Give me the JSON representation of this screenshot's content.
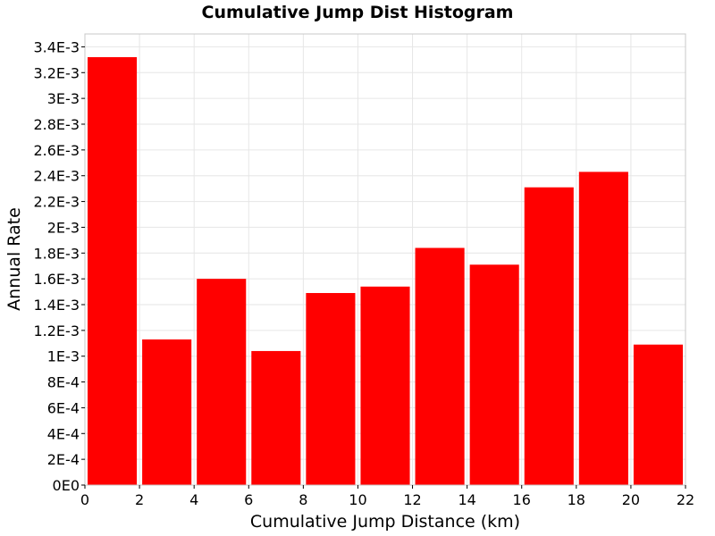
{
  "chart_data": {
    "type": "bar",
    "title": "Cumulative Jump Dist Histogram",
    "xlabel": "Cumulative Jump Distance (km)",
    "ylabel": "Annual Rate",
    "xlim": [
      0,
      22
    ],
    "ylim": [
      0,
      0.0035
    ],
    "x_ticks": [
      0,
      2,
      4,
      6,
      8,
      10,
      12,
      14,
      16,
      18,
      20,
      22
    ],
    "x_tick_labels": [
      "0",
      "2",
      "4",
      "6",
      "8",
      "10",
      "12",
      "14",
      "16",
      "18",
      "20",
      "22"
    ],
    "y_ticks": [
      0,
      0.0002,
      0.0004,
      0.0006,
      0.0008,
      0.001,
      0.0012,
      0.0014,
      0.0016,
      0.0018,
      0.002,
      0.0022,
      0.0024,
      0.0026,
      0.0028,
      0.003,
      0.0032,
      0.0034
    ],
    "y_tick_labels": [
      "0E0",
      "2E-4",
      "4E-4",
      "6E-4",
      "8E-4",
      "1E-3",
      "1.2E-3",
      "1.4E-3",
      "1.6E-3",
      "1.8E-3",
      "2E-3",
      "2.2E-3",
      "2.4E-3",
      "2.6E-3",
      "2.8E-3",
      "3E-3",
      "3.2E-3",
      "3.4E-3"
    ],
    "bin_width": 2,
    "x": [
      1,
      3,
      5,
      7,
      9,
      11,
      13,
      15,
      17,
      19,
      21
    ],
    "values": [
      0.00332,
      0.00113,
      0.0016,
      0.00104,
      0.00149,
      0.00154,
      0.00184,
      0.00171,
      0.00231,
      0.00243,
      0.00109
    ],
    "color": "#ff0000",
    "grid": true,
    "legend": "none"
  }
}
